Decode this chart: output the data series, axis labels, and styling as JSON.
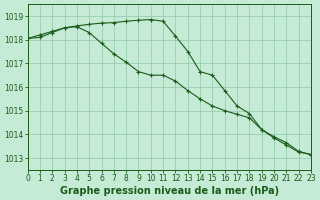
{
  "title": "Graphe pression niveau de la mer (hPa)",
  "bg_color": "#c5ead5",
  "grid_color": "#90c8a8",
  "line_color": "#1a5c1a",
  "xlim": [
    0,
    23
  ],
  "ylim": [
    1012.5,
    1019.5
  ],
  "yticks": [
    1013,
    1014,
    1015,
    1016,
    1017,
    1018,
    1019
  ],
  "xticks": [
    0,
    1,
    2,
    3,
    4,
    5,
    6,
    7,
    8,
    9,
    10,
    11,
    12,
    13,
    14,
    15,
    16,
    17,
    18,
    19,
    20,
    21,
    22,
    23
  ],
  "series1": [
    1018.05,
    1018.2,
    1018.35,
    1018.5,
    1018.58,
    1018.65,
    1018.7,
    1018.72,
    1018.78,
    1018.82,
    1018.85,
    1018.78,
    1018.15,
    1017.5,
    1016.65,
    1016.5,
    1015.85,
    1015.2,
    1014.88,
    1014.2,
    1013.85,
    1013.55,
    1013.25,
    1013.15
  ],
  "series2": [
    1018.05,
    1018.1,
    1018.3,
    1018.5,
    1018.55,
    1018.3,
    1017.85,
    1017.4,
    1017.05,
    1016.65,
    1016.5,
    1016.5,
    1016.25,
    1015.85,
    1015.5,
    1015.2,
    1015.0,
    1014.85,
    1014.7,
    1014.2,
    1013.9,
    1013.65,
    1013.28,
    1013.15
  ],
  "title_fontsize": 7,
  "tick_fontsize": 5.5
}
